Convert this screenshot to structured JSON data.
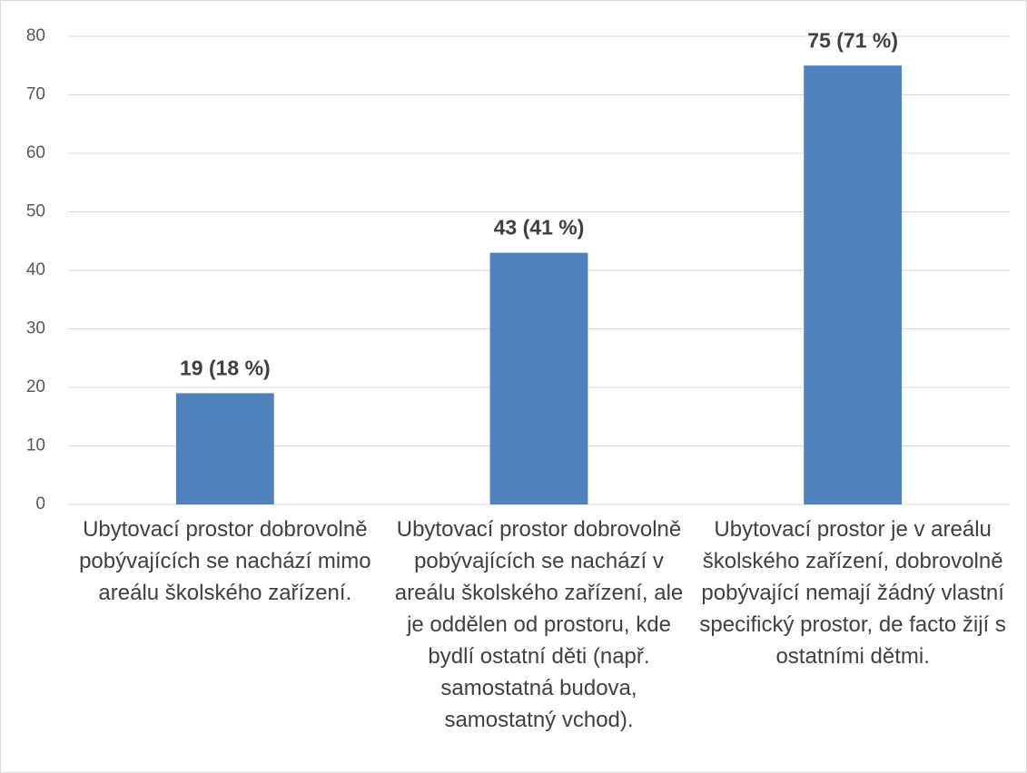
{
  "chart_data": {
    "type": "bar",
    "categories": [
      "Ubytovací prostor dobrovolně pobývajících se nachází mimo areálu školského zařízení.",
      "Ubytovací prostor dobrovolně pobývajících se nachází v areálu školského zařízení, ale je oddělen od prostoru, kde bydlí ostatní děti (např. samostatná budova, samostatný vchod).",
      "Ubytovací prostor je v areálu školského zařízení, dobrovolně pobývající nemají žádný vlastní specifický prostor, de facto žijí s ostatními dětmi."
    ],
    "values": [
      19,
      43,
      75
    ],
    "value_labels": [
      "19 (18 %)",
      "43 (41 %)",
      "75 (71 %)"
    ],
    "color": "#4f81bd",
    "ylim": [
      0,
      80
    ],
    "yticks": [
      0,
      10,
      20,
      30,
      40,
      50,
      60,
      70,
      80
    ],
    "grid": true
  }
}
